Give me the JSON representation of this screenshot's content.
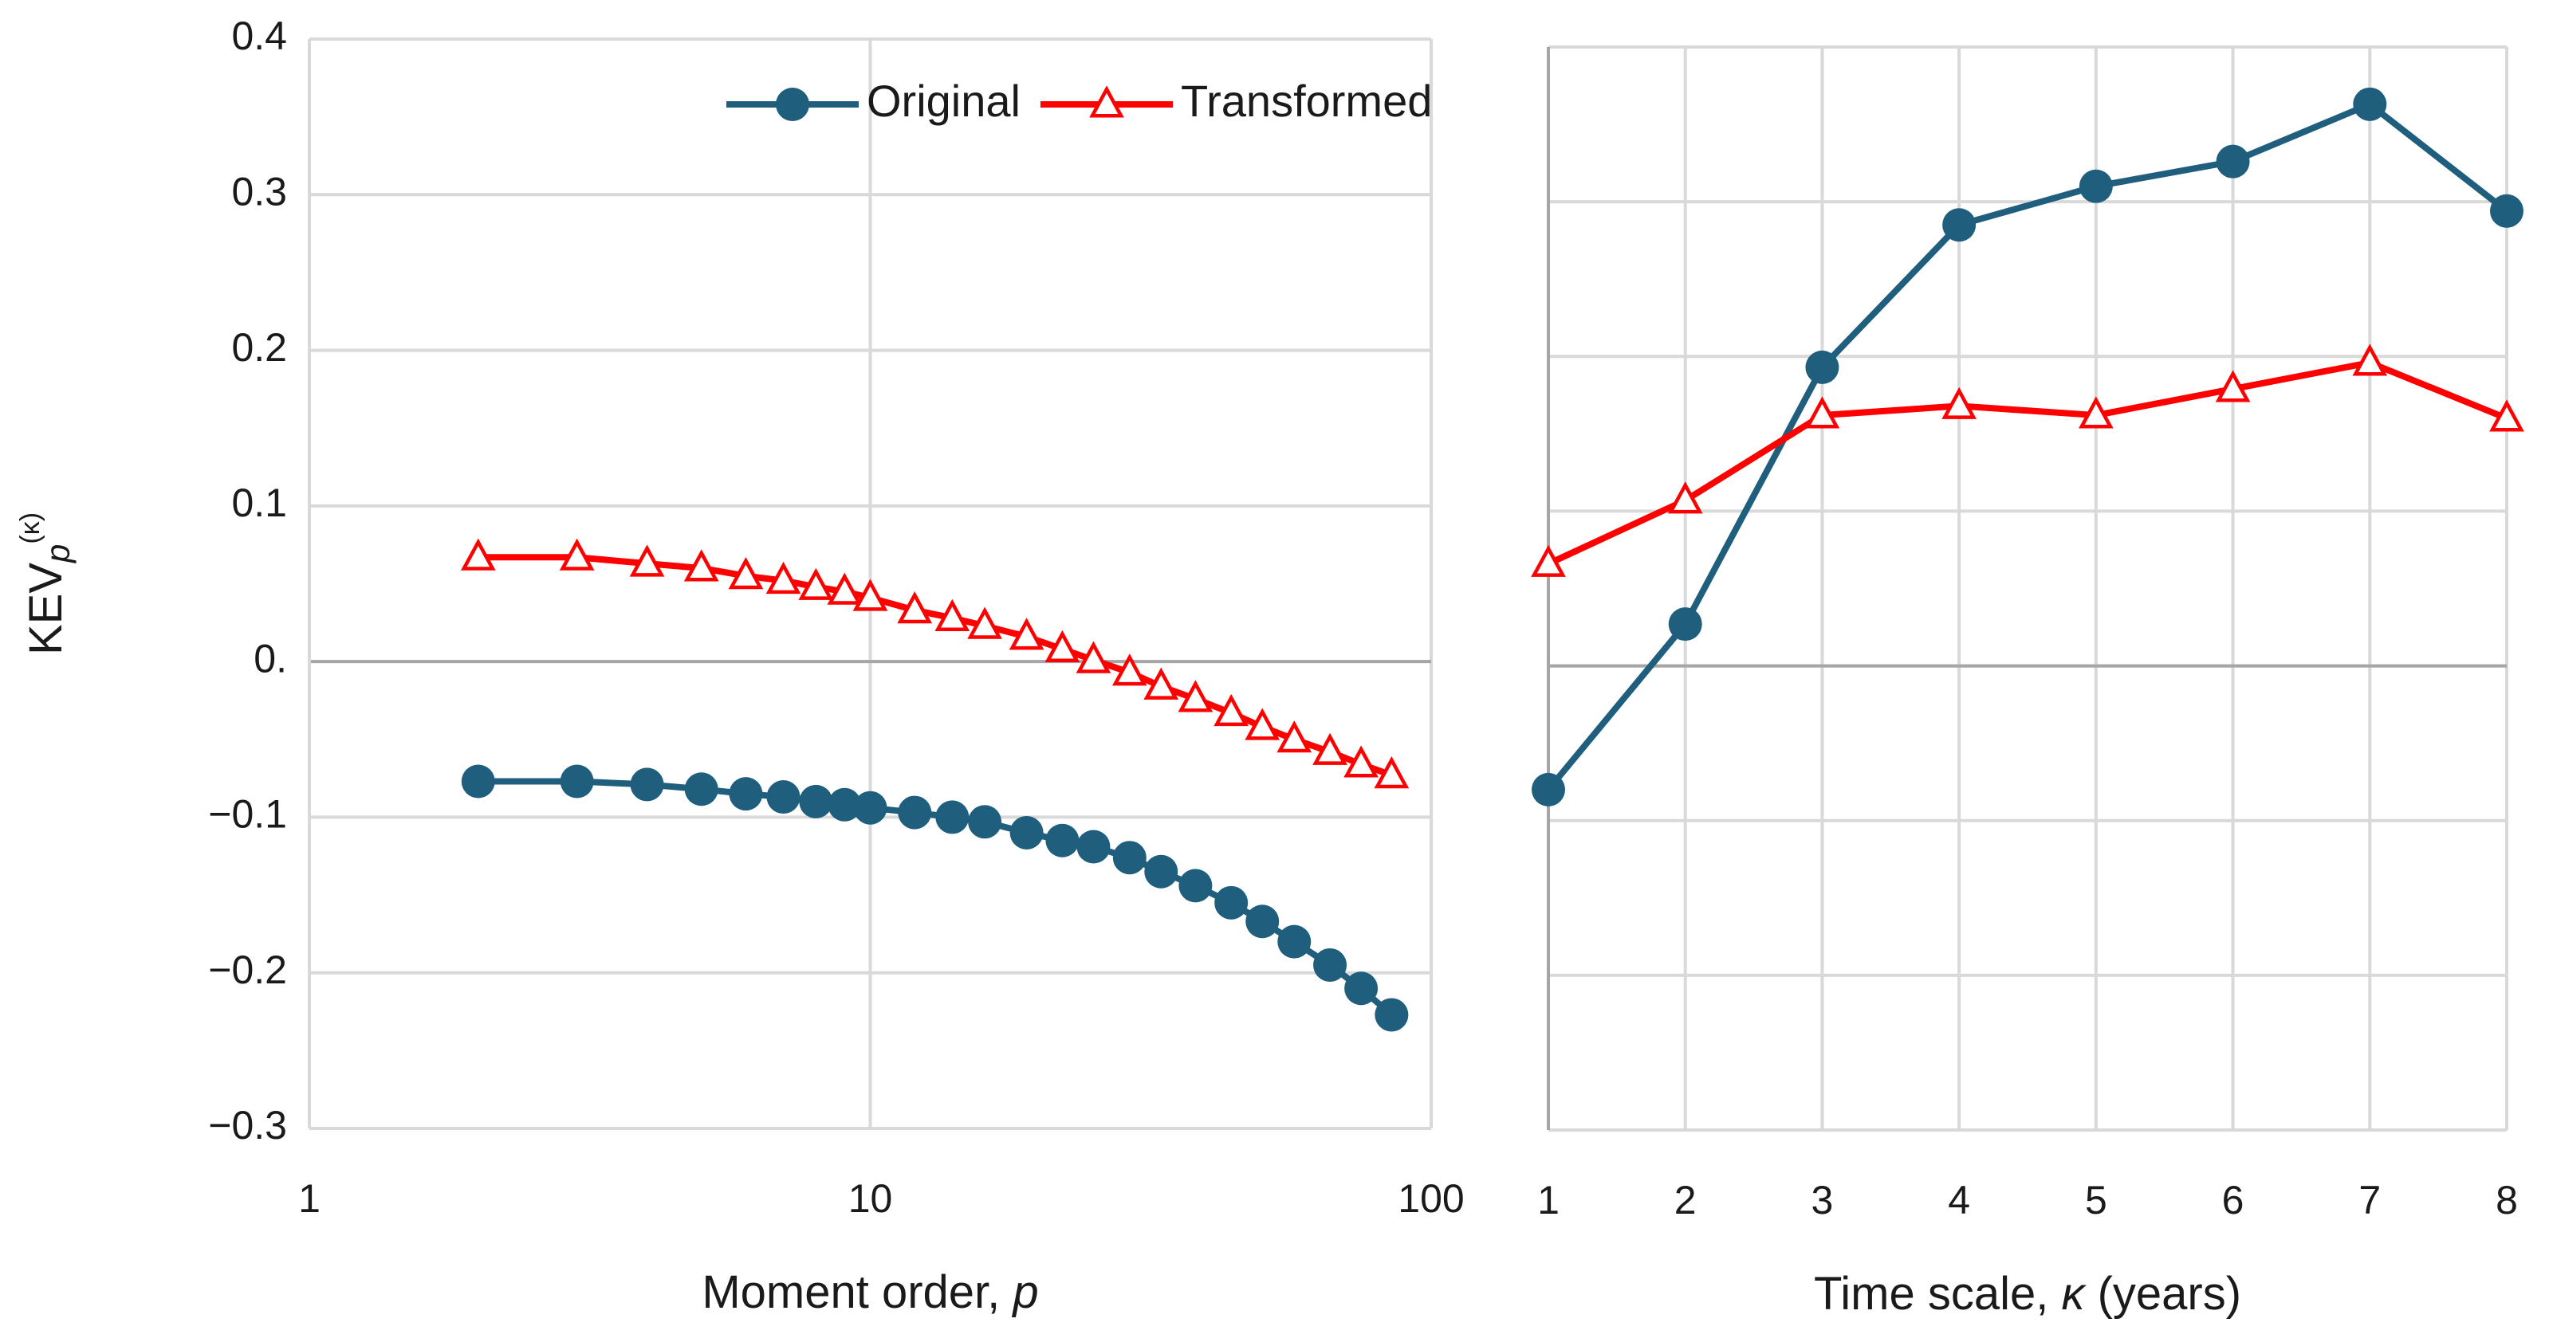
{
  "chart_data": [
    {
      "type": "line",
      "xscale": "log",
      "ylabel": {
        "text": "KEV",
        "sub": "p",
        "sup": "(κ)"
      },
      "xlabel": {
        "text": "Moment order, ",
        "var": "p"
      },
      "x": [
        2,
        3,
        4,
        5,
        6,
        7,
        8,
        9,
        10,
        12,
        14,
        16,
        19,
        22,
        25,
        29,
        33,
        38,
        44,
        50,
        57,
        66,
        75,
        85
      ],
      "series": [
        {
          "name": "Original",
          "color": "#1f5f7d",
          "marker": "circle",
          "values": [
            -0.077,
            -0.077,
            -0.079,
            -0.082,
            -0.085,
            -0.087,
            -0.09,
            -0.092,
            -0.094,
            -0.097,
            -0.1,
            -0.103,
            -0.11,
            -0.115,
            -0.119,
            -0.126,
            -0.135,
            -0.144,
            -0.155,
            -0.167,
            -0.18,
            -0.195,
            -0.21,
            -0.227
          ]
        },
        {
          "name": "Transformed",
          "color": "#ff0000",
          "marker": "triangle",
          "values": [
            0.067,
            0.067,
            0.063,
            0.06,
            0.055,
            0.052,
            0.048,
            0.045,
            0.041,
            0.033,
            0.028,
            0.023,
            0.016,
            0.008,
            0.001,
            -0.007,
            -0.016,
            -0.024,
            -0.033,
            -0.042,
            -0.05,
            -0.058,
            -0.066,
            -0.073
          ]
        }
      ],
      "xlim": [
        1,
        100
      ],
      "xticks": [
        1,
        10,
        100
      ],
      "ylim": [
        -0.3,
        0.4
      ],
      "yticks": [
        {
          "value": -0.3,
          "label": "−0.3"
        },
        {
          "value": -0.2,
          "label": "−0.2"
        },
        {
          "value": -0.1,
          "label": "−0.1"
        },
        {
          "value": 0,
          "label": "0."
        },
        0.1,
        0.2,
        0.3,
        0.4
      ],
      "grid": true,
      "legend": "top-right"
    },
    {
      "type": "line",
      "xscale": "linear",
      "xlabel": {
        "text": "Time scale, ",
        "var": "κ",
        "unit": " (years)"
      },
      "x": [
        1,
        2,
        3,
        4,
        5,
        6,
        7,
        8
      ],
      "series": [
        {
          "name": "Original",
          "color": "#1f5f7d",
          "marker": "circle",
          "values": [
            -0.08,
            0.027,
            0.193,
            0.285,
            0.31,
            0.326,
            0.363,
            0.294
          ]
        },
        {
          "name": "Transformed",
          "color": "#ff0000",
          "marker": "triangle",
          "values": [
            0.066,
            0.107,
            0.162,
            0.168,
            0.162,
            0.179,
            0.196,
            0.16
          ]
        }
      ],
      "xlim": [
        1,
        8
      ],
      "xticks": [
        1,
        2,
        3,
        4,
        5,
        6,
        7,
        8
      ],
      "ylim": [
        -0.3,
        0.4
      ],
      "yticks": [
        -0.3,
        -0.2,
        -0.1,
        0,
        0.1,
        0.2,
        0.3,
        0.4
      ],
      "ytick_labels": false,
      "grid": true
    }
  ]
}
